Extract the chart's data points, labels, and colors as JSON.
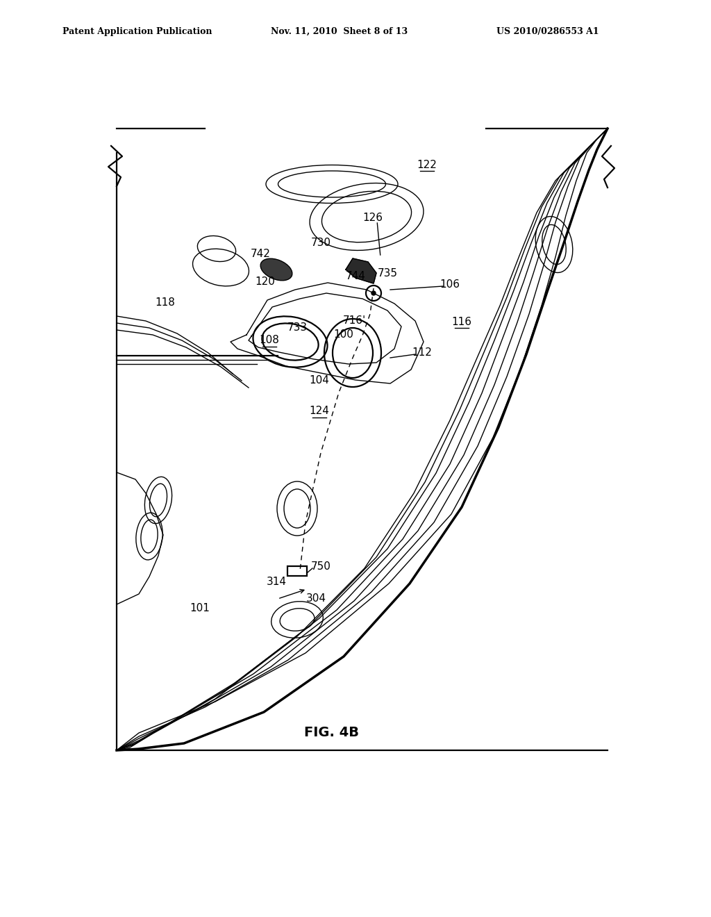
{
  "title": "",
  "header_left": "Patent Application Publication",
  "header_center": "Nov. 11, 2010  Sheet 8 of 13",
  "header_right": "US 2010/0286553 A1",
  "figure_label": "FIG. 4B",
  "bg_color": "#ffffff",
  "line_color": "#000000"
}
